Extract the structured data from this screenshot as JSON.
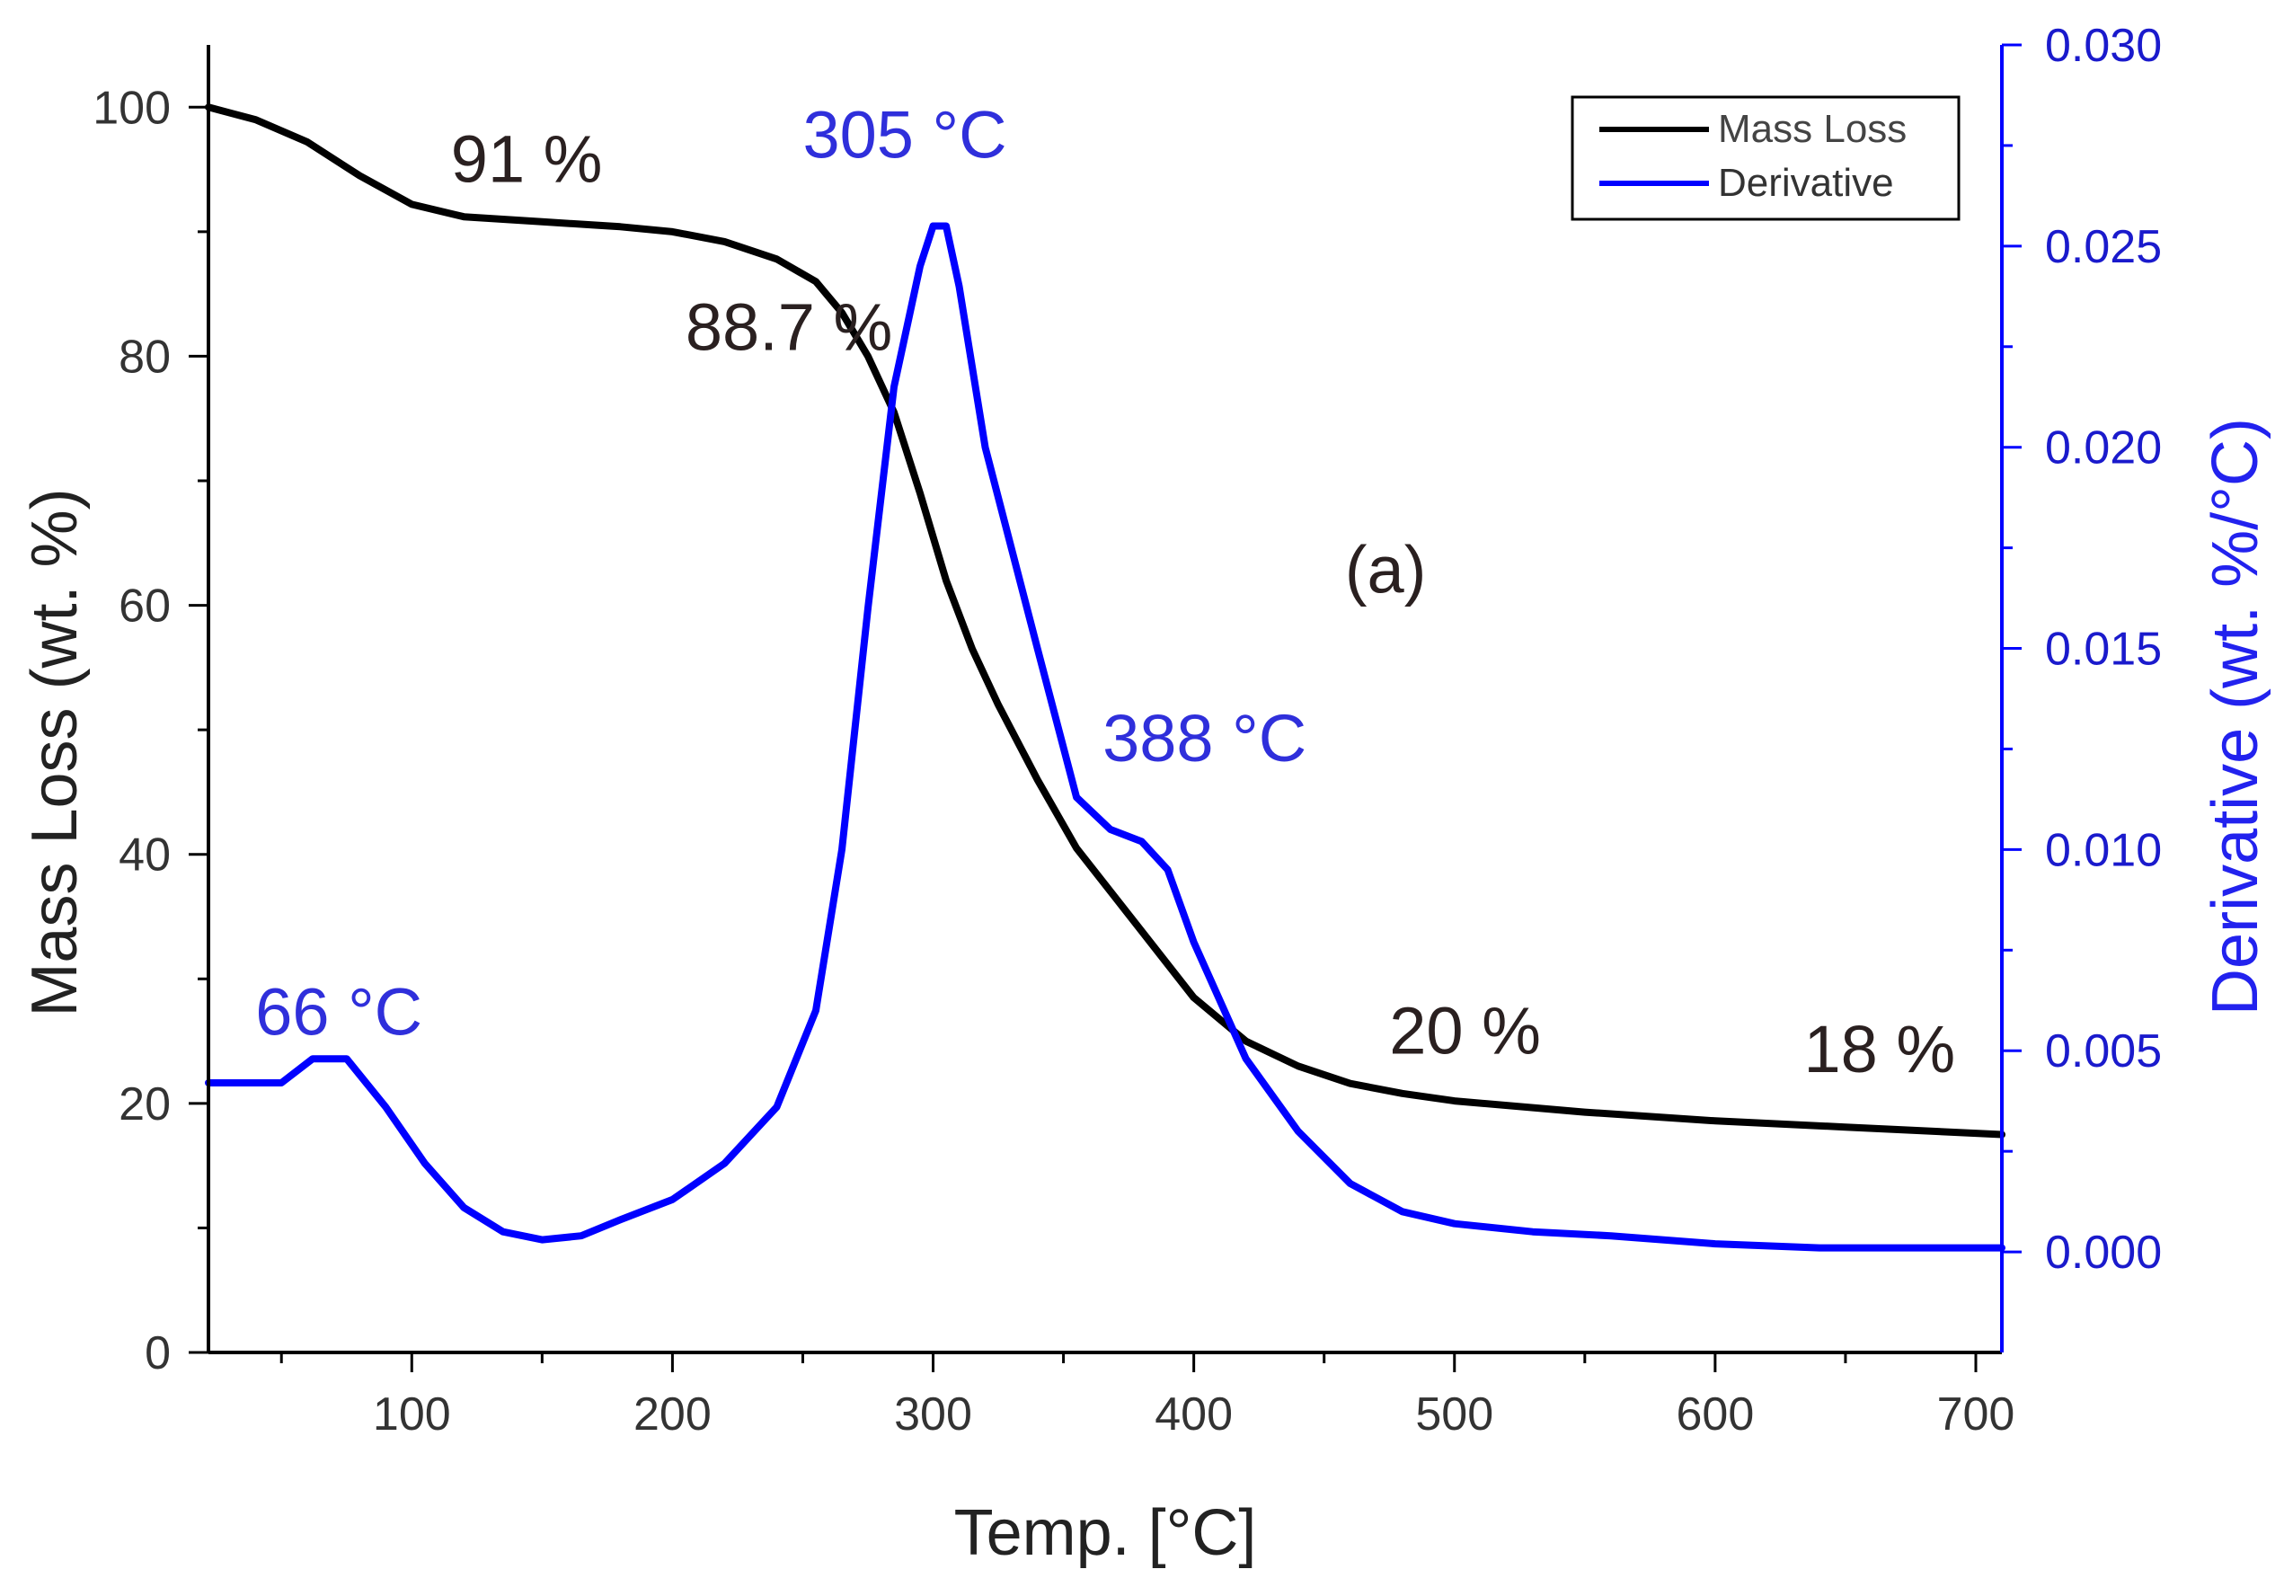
{
  "chart_data": {
    "type": "line",
    "title": "",
    "xlabel": "Temp. [°C]",
    "ylabel": "Mass Loss (wt. %)",
    "y2label": "Derivative (wt. %/°C)",
    "xlim": [
      22,
      710
    ],
    "ylim": [
      0,
      105
    ],
    "y2lim": [
      -0.0025,
      0.03
    ],
    "xticks": [
      100,
      200,
      300,
      400,
      500,
      600,
      700
    ],
    "yticks": [
      0,
      20,
      40,
      60,
      80,
      100
    ],
    "y2ticks": [
      0.0,
      0.005,
      0.01,
      0.015,
      0.02,
      0.025,
      0.03
    ],
    "y2ticklabels": [
      "0.000",
      "0.005",
      "0.010",
      "0.015",
      "0.020",
      "0.025",
      "0.030"
    ],
    "grid": false,
    "legend_position": "top-right",
    "panel_label": "(a)",
    "series": [
      {
        "name": "Mass Loss",
        "axis": "left",
        "color": "#000000",
        "x": [
          22,
          40,
          60,
          80,
          100,
          120,
          150,
          180,
          200,
          220,
          240,
          255,
          265,
          275,
          285,
          295,
          305,
          315,
          325,
          340,
          355,
          370,
          385,
          400,
          420,
          440,
          460,
          480,
          500,
          550,
          600,
          650,
          700,
          710
        ],
        "y": [
          100,
          99,
          97.2,
          94.5,
          92.2,
          91.2,
          90.8,
          90.4,
          90.0,
          89.2,
          87.8,
          86.0,
          83.5,
          80.0,
          75.5,
          69.0,
          62.0,
          56.5,
          52.0,
          46.0,
          40.5,
          36.5,
          32.5,
          28.5,
          25.0,
          23.0,
          21.6,
          20.8,
          20.2,
          19.3,
          18.6,
          18.1,
          17.6,
          17.5
        ]
      },
      {
        "name": "Derivative",
        "axis": "right",
        "color": "#0000ff",
        "x": [
          22,
          50,
          62,
          75,
          90,
          105,
          120,
          135,
          150,
          165,
          180,
          200,
          220,
          240,
          255,
          265,
          275,
          285,
          295,
          300,
          305,
          310,
          320,
          340,
          355,
          368,
          380,
          390,
          400,
          420,
          440,
          460,
          480,
          500,
          530,
          560,
          600,
          640,
          710
        ],
        "y": [
          0.0042,
          0.0042,
          0.0048,
          0.0048,
          0.0036,
          0.0022,
          0.0011,
          0.0005,
          0.0003,
          0.0004,
          0.0008,
          0.0013,
          0.0022,
          0.0036,
          0.006,
          0.01,
          0.016,
          0.0215,
          0.0245,
          0.0255,
          0.0255,
          0.024,
          0.02,
          0.015,
          0.0113,
          0.0105,
          0.0102,
          0.0095,
          0.0077,
          0.0048,
          0.003,
          0.0017,
          0.001,
          0.0007,
          0.0005,
          0.0004,
          0.0002,
          0.0001,
          0.0001
        ]
      }
    ],
    "annotations": [
      {
        "text": "91 %",
        "x": 115,
        "y": 94,
        "axis": "left",
        "color": "#2a2020"
      },
      {
        "text": "88.7 %",
        "x": 205,
        "y": 80.5,
        "axis": "left",
        "color": "#2a2020"
      },
      {
        "text": "305 °C",
        "x": 250,
        "y": 0.0272,
        "axis": "right",
        "color": "#2f2fdb"
      },
      {
        "text": "388 °C",
        "x": 365,
        "y": 0.0122,
        "axis": "right",
        "color": "#2f2fdb"
      },
      {
        "text": "66 °C",
        "x": 40,
        "y": 0.0054,
        "axis": "right",
        "color": "#2f2fdb"
      },
      {
        "text": "20 %",
        "x": 475,
        "y": 24,
        "axis": "left",
        "color": "#2a2020"
      },
      {
        "text": "18 %",
        "x": 634,
        "y": 22.5,
        "axis": "left",
        "color": "#2a2020"
      },
      {
        "text": "(a)",
        "x": 458,
        "y": 61,
        "axis": "left",
        "color": "#2a2020"
      }
    ]
  }
}
